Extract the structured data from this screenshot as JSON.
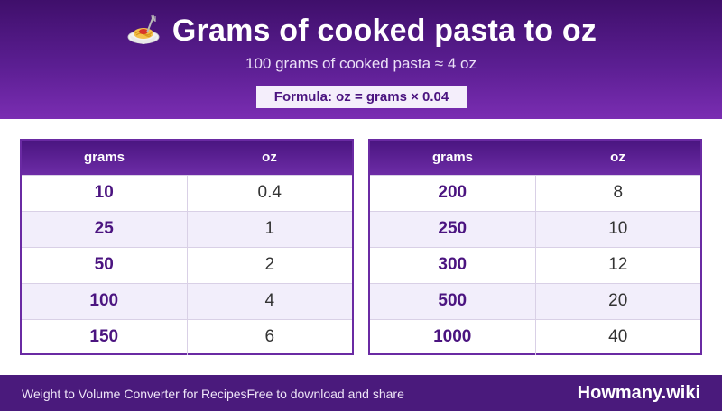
{
  "header": {
    "title": "Grams of cooked pasta to oz",
    "title_icon": "spaghetti-icon",
    "subtitle": "100 grams of cooked pasta ≈ 4 oz",
    "formula": "Formula: oz = grams × 0.04"
  },
  "tables": [
    {
      "col_grams": "grams",
      "col_oz": "oz",
      "rows": [
        {
          "grams": "10",
          "oz": "0.4"
        },
        {
          "grams": "25",
          "oz": "1"
        },
        {
          "grams": "50",
          "oz": "2"
        },
        {
          "grams": "100",
          "oz": "4"
        },
        {
          "grams": "150",
          "oz": "6"
        }
      ]
    },
    {
      "col_grams": "grams",
      "col_oz": "oz",
      "rows": [
        {
          "grams": "200",
          "oz": "8"
        },
        {
          "grams": "250",
          "oz": "10"
        },
        {
          "grams": "300",
          "oz": "12"
        },
        {
          "grams": "500",
          "oz": "20"
        },
        {
          "grams": "1000",
          "oz": "40"
        }
      ]
    }
  ],
  "footer": {
    "left_text": "Weight to Volume Converter for RecipesFree to download and share",
    "brand": "Howmany.wiki"
  },
  "colors": {
    "header_purple": "#5b1e92",
    "accent_purple": "#4b1480",
    "footer_purple": "#4a1a7c"
  }
}
